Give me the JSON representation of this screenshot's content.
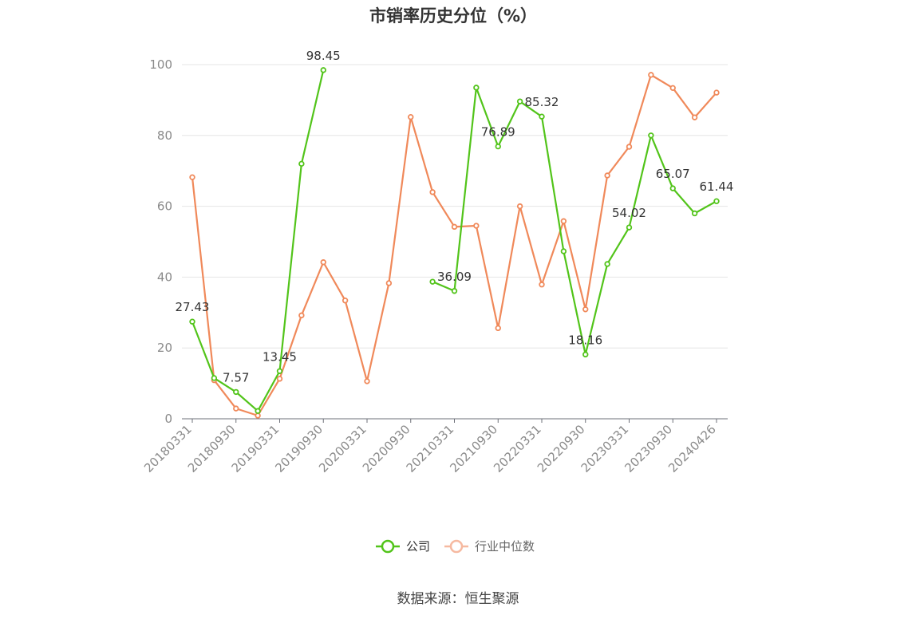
{
  "title": "市销率历史分位（%）",
  "source": "数据来源：恒生聚源",
  "chart_data": {
    "type": "line",
    "title": "市销率历史分位（%）",
    "ylim": [
      0,
      100
    ],
    "y_ticks": [
      0,
      20,
      40,
      60,
      80,
      100
    ],
    "grid": true,
    "legend_position": "bottom",
    "x_tick_labels": [
      "20180331",
      "20180930",
      "20190331",
      "20190930",
      "20200331",
      "20200930",
      "20210331",
      "20210930",
      "20220331",
      "20220930",
      "20230331",
      "20230930",
      "20240426"
    ],
    "x": [
      "20180331",
      "20180630",
      "20180930",
      "20181231",
      "20190331",
      "20190630",
      "20190930",
      "20191231",
      "20200331",
      "20200630",
      "20200930",
      "20201231",
      "20210331",
      "20210630",
      "20210930",
      "20211231",
      "20220331",
      "20220630",
      "20220930",
      "20221231",
      "20230331",
      "20230630",
      "20230930",
      "20231231",
      "20240426"
    ],
    "series": [
      {
        "name": "公司",
        "color": "#52c41a",
        "values": [
          27.43,
          11.5,
          7.57,
          2.2,
          13.45,
          72.0,
          98.45,
          null,
          null,
          null,
          null,
          38.7,
          36.09,
          93.5,
          76.89,
          89.6,
          85.32,
          47.3,
          18.16,
          43.7,
          54.02,
          80.0,
          65.07,
          58.0,
          61.44
        ],
        "labels": {
          "0": "27.43",
          "2": "7.57",
          "4": "13.45",
          "6": "98.45",
          "12": "36.09",
          "14": "76.89",
          "16": "85.32",
          "18": "18.16",
          "20": "54.02",
          "22": "65.07",
          "24": "61.44"
        }
      },
      {
        "name": "行业中位数",
        "color": "#f0895a",
        "values": [
          68.2,
          10.9,
          2.9,
          0.9,
          11.3,
          29.2,
          44.2,
          33.4,
          10.6,
          38.3,
          85.2,
          64.0,
          54.2,
          54.5,
          25.6,
          60.0,
          37.9,
          55.8,
          30.9,
          68.7,
          76.8,
          97.1,
          93.4,
          85.1,
          92.1
        ]
      }
    ]
  }
}
